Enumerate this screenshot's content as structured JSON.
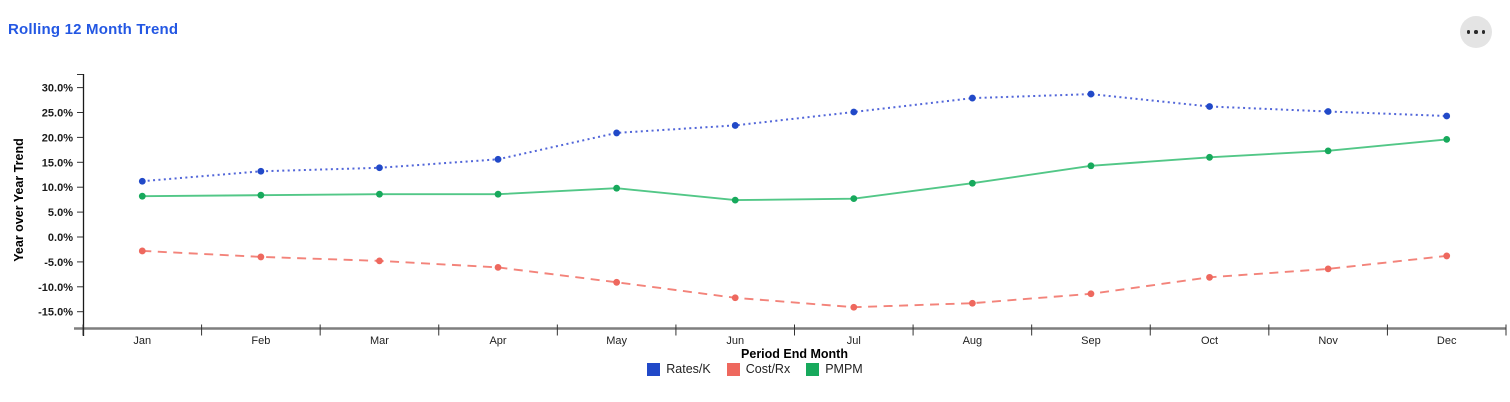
{
  "header": {
    "title": "Rolling 12 Month Trend",
    "title_color": "#2357e3",
    "menu_icon": "ellipsis-icon"
  },
  "axis_style": {
    "x_line_color": "#7f7f7f",
    "y_line_color": "#1a1a1a",
    "tick_color": "#333333"
  },
  "chart_data": {
    "type": "line",
    "title": "Rolling 12 Month Trend",
    "xlabel": "Period End Month",
    "ylabel": "Year over Year Trend",
    "grid": false,
    "legend_position": "bottom",
    "ylim": [
      -18.3,
      32.7
    ],
    "categories": [
      "Jan",
      "Feb",
      "Mar",
      "Apr",
      "May",
      "Jun",
      "Jul",
      "Aug",
      "Sep",
      "Oct",
      "Nov",
      "Dec"
    ],
    "yticks": [
      {
        "value": 30,
        "label": "30.0%"
      },
      {
        "value": 25,
        "label": "25.0%"
      },
      {
        "value": 20,
        "label": "20.0%"
      },
      {
        "value": 15,
        "label": "15.0%"
      },
      {
        "value": 10,
        "label": "10.0%"
      },
      {
        "value": 5,
        "label": "5.0%"
      },
      {
        "value": 0,
        "label": "0.0%"
      },
      {
        "value": -5,
        "label": "-5.0%"
      },
      {
        "value": -10,
        "label": "-10.0%"
      },
      {
        "value": -15,
        "label": "-15.0%"
      }
    ],
    "series": [
      {
        "name": "Rates/K",
        "style": "dotted",
        "line_color": "#5266d9",
        "marker_color": "#2149c8",
        "values": [
          11.2,
          13.2,
          13.9,
          15.6,
          20.9,
          22.4,
          25.1,
          27.9,
          28.7,
          26.2,
          25.2,
          24.3
        ]
      },
      {
        "name": "Cost/Rx",
        "style": "dashed",
        "line_color": "#f3837a",
        "marker_color": "#ee685e",
        "values": [
          -2.8,
          -4.0,
          -4.8,
          -6.1,
          -9.1,
          -12.2,
          -14.1,
          -13.3,
          -11.4,
          -8.1,
          -6.4,
          -3.8
        ]
      },
      {
        "name": "PMPM",
        "style": "solid",
        "line_color": "#52c787",
        "marker_color": "#17a95c",
        "values": [
          8.2,
          8.4,
          8.6,
          8.6,
          9.8,
          7.4,
          7.7,
          10.8,
          14.3,
          16.0,
          17.3,
          19.6
        ]
      }
    ]
  }
}
